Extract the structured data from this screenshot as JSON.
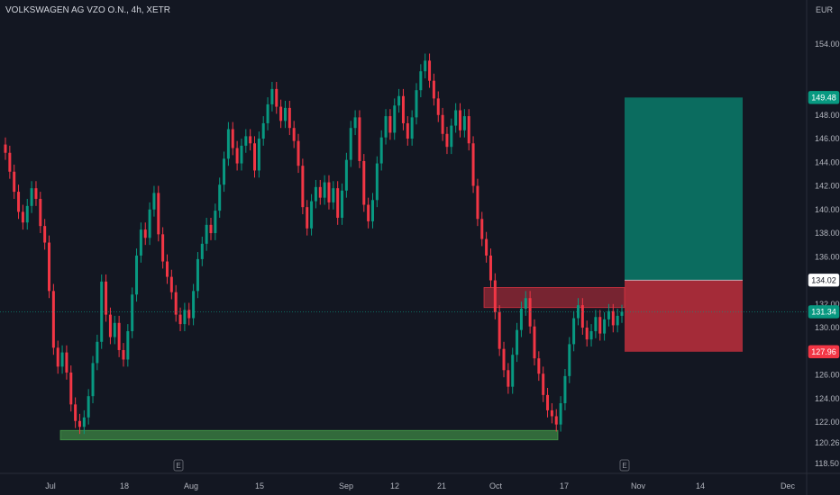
{
  "header": {
    "title": "VOLKSWAGEN AG VZO O.N., 4h, XETR"
  },
  "chart_data": {
    "type": "candlestick",
    "currency_label": "EUR",
    "y_ticks": [
      "154.00",
      "149.48",
      "148.00",
      "146.00",
      "144.00",
      "142.00",
      "140.00",
      "138.00",
      "136.00",
      "134.02",
      "132.00",
      "131.34",
      "130.00",
      "127.96",
      "126.00",
      "124.00",
      "122.00",
      "120.26",
      "118.50"
    ],
    "x_ticks": [
      "Jul",
      "18",
      "Aug",
      "15",
      "Sep",
      "12",
      "21",
      "Oct",
      "17",
      "Nov",
      "14",
      "Dec"
    ],
    "event_markers": [
      "E",
      "E"
    ],
    "price_tags": [
      {
        "label": "149.48",
        "value": 149.48,
        "color": "#089981"
      },
      {
        "label": "134.02",
        "value": 134.02,
        "color": "#ffffff"
      },
      {
        "label": "131.34",
        "value": 131.34,
        "color": "#089981"
      },
      {
        "label": "127.96",
        "value": 127.96,
        "color": "#f23645"
      }
    ],
    "current_price": 131.34,
    "position": {
      "target": 149.48,
      "entry": 134.02,
      "stop": 127.96
    },
    "zones": [
      {
        "name": "support",
        "low": 120.5,
        "high": 121.3,
        "color": "#4caf50"
      },
      {
        "name": "resistance",
        "low": 131.7,
        "high": 133.4,
        "color": "#f23645"
      }
    ],
    "candles": [
      [
        145.5,
        144.8
      ],
      [
        144.8,
        143.2
      ],
      [
        143.2,
        141.5
      ],
      [
        141.5,
        139.8
      ],
      [
        139.8,
        138.9
      ],
      [
        138.9,
        140.3
      ],
      [
        140.3,
        141.8
      ],
      [
        141.8,
        140.9
      ],
      [
        140.9,
        138.6
      ],
      [
        138.6,
        137.2
      ],
      [
        137.2,
        133.1
      ],
      [
        133.1,
        128.3
      ],
      [
        128.3,
        126.7
      ],
      [
        126.7,
        127.9
      ],
      [
        127.9,
        126.2
      ],
      [
        126.2,
        123.5
      ],
      [
        123.5,
        122.1
      ],
      [
        122.1,
        121.6
      ],
      [
        121.6,
        122.4
      ],
      [
        122.4,
        124.2
      ],
      [
        124.2,
        127.0
      ],
      [
        127.0,
        128.8
      ],
      [
        128.8,
        133.9
      ],
      [
        133.9,
        131.1
      ],
      [
        131.1,
        129.2
      ],
      [
        129.2,
        130.4
      ],
      [
        130.4,
        128.1
      ],
      [
        128.1,
        127.3
      ],
      [
        127.3,
        129.7
      ],
      [
        129.7,
        132.8
      ],
      [
        132.8,
        136.1
      ],
      [
        136.1,
        138.3
      ],
      [
        138.3,
        137.6
      ],
      [
        137.6,
        140.0
      ],
      [
        140.0,
        141.4
      ],
      [
        141.4,
        137.9
      ],
      [
        137.9,
        135.6
      ],
      [
        135.6,
        134.3
      ],
      [
        134.3,
        133.0
      ],
      [
        133.0,
        131.1
      ],
      [
        131.1,
        130.3
      ],
      [
        130.3,
        131.5
      ],
      [
        131.5,
        130.8
      ],
      [
        130.8,
        133.1
      ],
      [
        133.1,
        135.8
      ],
      [
        135.8,
        137.1
      ],
      [
        137.1,
        138.7
      ],
      [
        138.7,
        138.0
      ],
      [
        138.0,
        139.9
      ],
      [
        139.9,
        142.1
      ],
      [
        142.1,
        144.3
      ],
      [
        144.3,
        146.8
      ],
      [
        146.8,
        145.2
      ],
      [
        145.2,
        143.9
      ],
      [
        143.9,
        145.4
      ],
      [
        145.4,
        146.2
      ],
      [
        146.2,
        145.6
      ],
      [
        145.6,
        143.3
      ],
      [
        143.3,
        146.0
      ],
      [
        146.0,
        147.3
      ],
      [
        147.3,
        148.9
      ],
      [
        148.9,
        150.2
      ],
      [
        150.2,
        148.7
      ],
      [
        148.7,
        147.5
      ],
      [
        147.5,
        148.6
      ],
      [
        148.6,
        146.9
      ],
      [
        146.9,
        145.8
      ],
      [
        145.8,
        143.7
      ],
      [
        143.7,
        140.2
      ],
      [
        140.2,
        138.4
      ],
      [
        138.4,
        140.7
      ],
      [
        140.7,
        141.9
      ],
      [
        141.9,
        141.0
      ],
      [
        141.0,
        142.3
      ],
      [
        142.3,
        140.6
      ],
      [
        140.6,
        141.8
      ],
      [
        141.8,
        139.3
      ],
      [
        139.3,
        141.6
      ],
      [
        141.6,
        144.2
      ],
      [
        144.2,
        146.9
      ],
      [
        146.9,
        147.8
      ],
      [
        147.8,
        144.1
      ],
      [
        144.1,
        140.4
      ],
      [
        140.4,
        139.0
      ],
      [
        139.0,
        140.8
      ],
      [
        140.8,
        143.9
      ],
      [
        143.9,
        146.1
      ],
      [
        146.1,
        147.9
      ],
      [
        147.9,
        146.5
      ],
      [
        146.5,
        148.8
      ],
      [
        148.8,
        149.6
      ],
      [
        149.6,
        147.3
      ],
      [
        147.3,
        146.0
      ],
      [
        146.0,
        147.8
      ],
      [
        147.8,
        150.1
      ],
      [
        150.1,
        151.7
      ],
      [
        151.7,
        152.6
      ],
      [
        152.6,
        150.9
      ],
      [
        150.9,
        149.4
      ],
      [
        149.4,
        148.0
      ],
      [
        148.0,
        146.4
      ],
      [
        146.4,
        145.3
      ],
      [
        145.3,
        147.1
      ],
      [
        147.1,
        148.4
      ],
      [
        148.4,
        146.7
      ],
      [
        146.7,
        147.9
      ],
      [
        147.9,
        145.6
      ],
      [
        145.6,
        142.0
      ],
      [
        142.0,
        139.2
      ],
      [
        139.2,
        137.5
      ],
      [
        137.5,
        136.1
      ],
      [
        136.1,
        134.0
      ],
      [
        134.0,
        131.3
      ],
      [
        131.3,
        128.2
      ],
      [
        128.2,
        126.4
      ],
      [
        126.4,
        125.0
      ],
      [
        125.0,
        127.7
      ],
      [
        127.7,
        129.8
      ],
      [
        129.8,
        131.6
      ],
      [
        131.6,
        132.5
      ],
      [
        132.5,
        130.1
      ],
      [
        130.1,
        127.4
      ],
      [
        127.4,
        126.1
      ],
      [
        126.1,
        124.3
      ],
      [
        124.3,
        123.0
      ],
      [
        123.0,
        122.5
      ],
      [
        122.5,
        121.8
      ],
      [
        121.8,
        123.6
      ],
      [
        123.6,
        125.9
      ],
      [
        125.9,
        128.6
      ],
      [
        128.6,
        130.8
      ],
      [
        130.8,
        131.9
      ],
      [
        131.9,
        130.0
      ],
      [
        130.0,
        129.0
      ],
      [
        129.0,
        129.7
      ],
      [
        129.7,
        130.9
      ],
      [
        130.9,
        129.5
      ],
      [
        129.5,
        130.7
      ],
      [
        130.7,
        131.4
      ],
      [
        131.4,
        130.2
      ],
      [
        130.2,
        131.0
      ],
      [
        131.0,
        131.34
      ]
    ]
  }
}
